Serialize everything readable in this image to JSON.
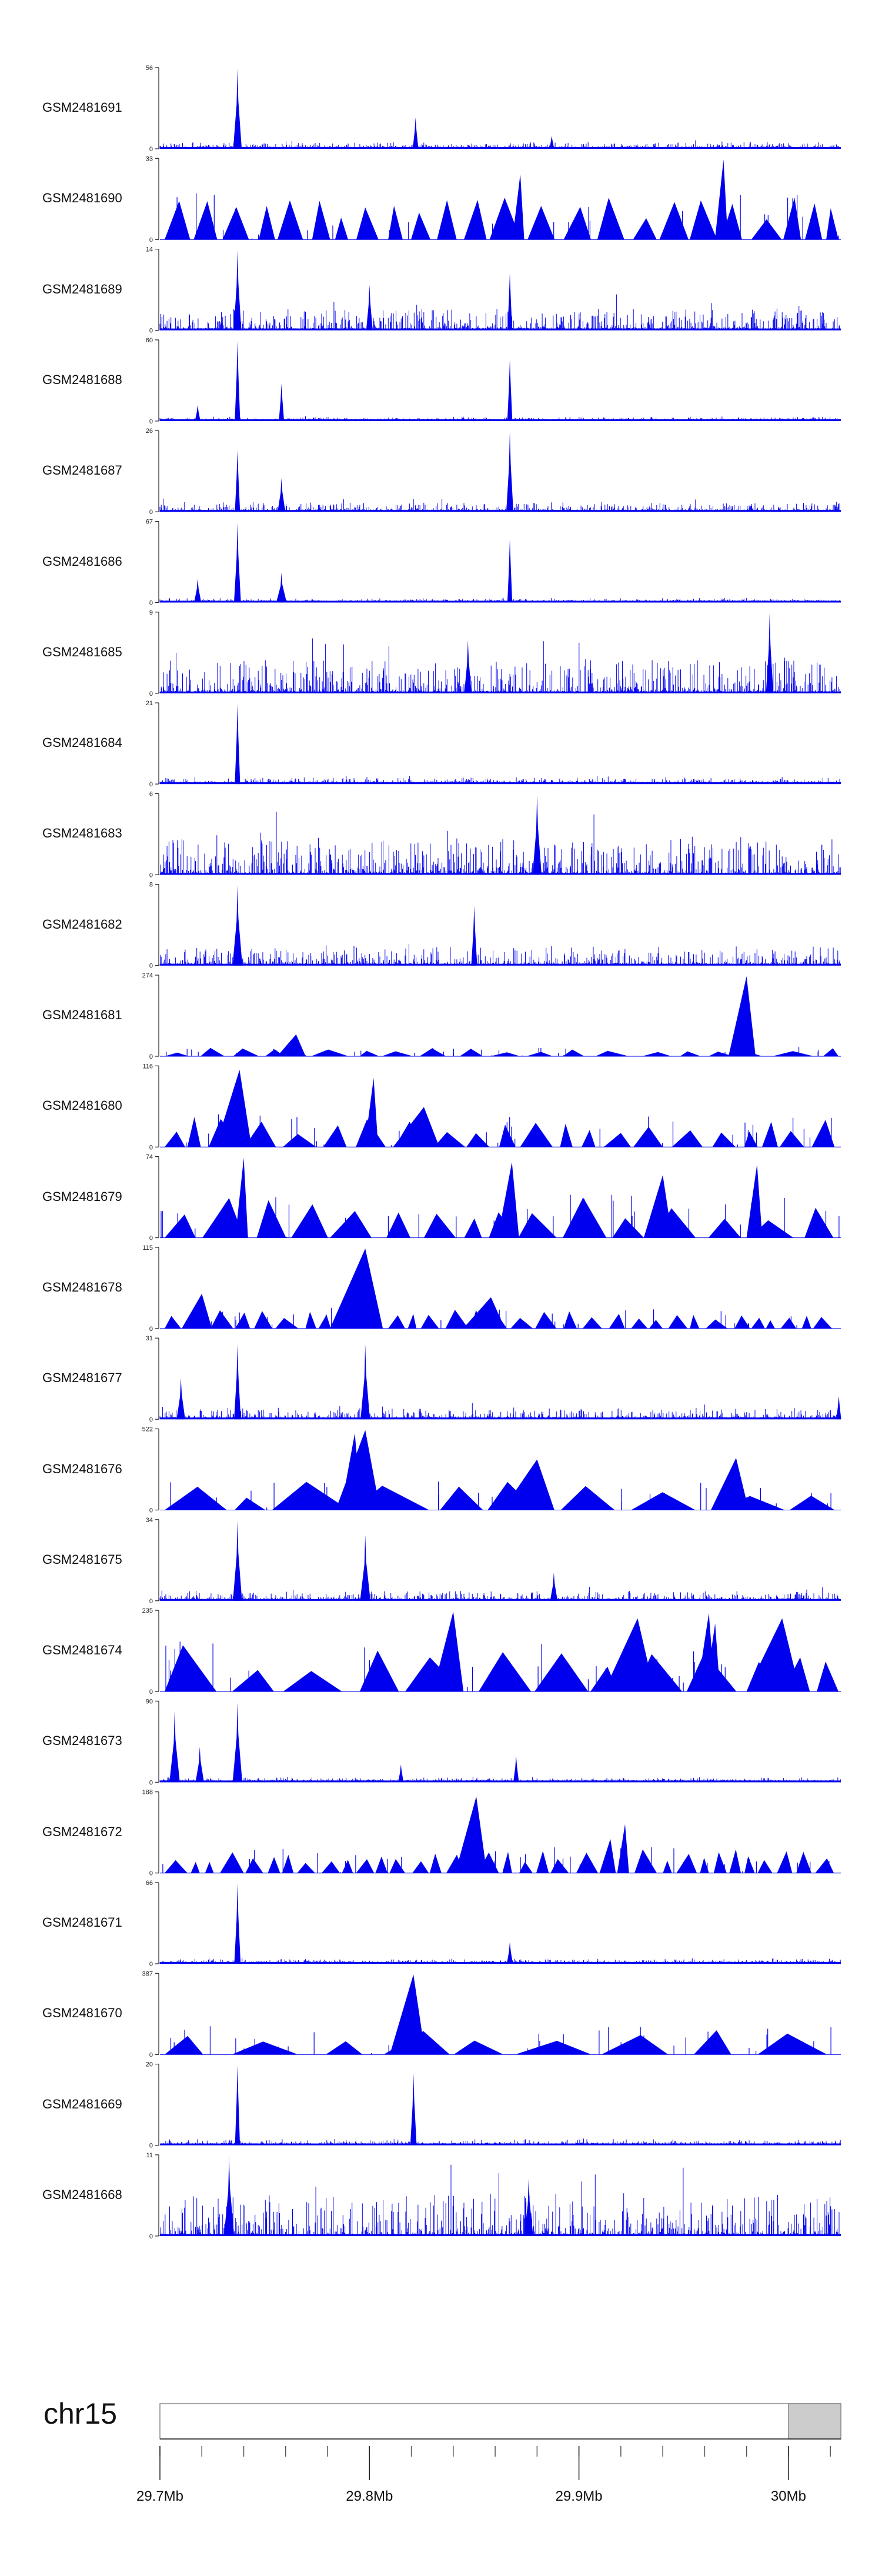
{
  "chart_data": {
    "type": "area",
    "title": "",
    "chromosome": "chr15",
    "region": {
      "start": 29.7,
      "end": 30.025,
      "unit": "Mb"
    },
    "series_color": "#0000ee",
    "tracks": [
      {
        "name": "GSM2481691",
        "ymax_label": "56",
        "ymin_label": "0",
        "ymax": 56,
        "style": "dense",
        "noise": 0.06,
        "peaks": [
          [
            29.737,
            56
          ],
          [
            29.822,
            22
          ],
          [
            29.887,
            9
          ]
        ]
      },
      {
        "name": "GSM2481690",
        "ymax_label": "33",
        "ymin_label": "0",
        "ymax": 33,
        "style": "sparse",
        "noise": 0.45,
        "gaps": 30,
        "peaks": [
          [
            29.969,
            33
          ],
          [
            29.872,
            27
          ]
        ]
      },
      {
        "name": "GSM2481689",
        "ymax_label": "14",
        "ymin_label": "0",
        "ymax": 14,
        "style": "dense",
        "noise": 0.25,
        "peaks": [
          [
            29.737,
            14
          ],
          [
            29.867,
            10
          ],
          [
            29.8,
            8
          ]
        ]
      },
      {
        "name": "GSM2481688",
        "ymax_label": "60",
        "ymin_label": "0",
        "ymax": 60,
        "style": "dense",
        "noise": 0.03,
        "peaks": [
          [
            29.737,
            60
          ],
          [
            29.758,
            28
          ],
          [
            29.867,
            46
          ],
          [
            29.718,
            12
          ]
        ]
      },
      {
        "name": "GSM2481687",
        "ymax_label": "26",
        "ymin_label": "0",
        "ymax": 26,
        "style": "dense",
        "noise": 0.1,
        "peaks": [
          [
            29.737,
            20
          ],
          [
            29.758,
            11
          ],
          [
            29.867,
            26
          ]
        ]
      },
      {
        "name": "GSM2481686",
        "ymax_label": "67",
        "ymin_label": "0",
        "ymax": 67,
        "style": "dense",
        "noise": 0.03,
        "peaks": [
          [
            29.737,
            67
          ],
          [
            29.758,
            25
          ],
          [
            29.867,
            53
          ],
          [
            29.718,
            20
          ]
        ]
      },
      {
        "name": "GSM2481685",
        "ymax_label": "9",
        "ymin_label": "0",
        "ymax": 9,
        "style": "dense",
        "noise": 0.4,
        "peaks": [
          [
            29.991,
            9
          ],
          [
            29.847,
            6
          ]
        ]
      },
      {
        "name": "GSM2481684",
        "ymax_label": "21",
        "ymin_label": "0",
        "ymax": 21,
        "style": "dense",
        "noise": 0.06,
        "peaks": [
          [
            29.737,
            21
          ]
        ]
      },
      {
        "name": "GSM2481683",
        "ymax_label": "6",
        "ymin_label": "0",
        "ymax": 6,
        "style": "dense",
        "noise": 0.45,
        "peaks": [
          [
            29.88,
            6
          ]
        ]
      },
      {
        "name": "GSM2481682",
        "ymax_label": "8",
        "ymin_label": "0",
        "ymax": 8,
        "style": "dense",
        "noise": 0.22,
        "peaks": [
          [
            29.737,
            8
          ],
          [
            29.85,
            6
          ]
        ]
      },
      {
        "name": "GSM2481681",
        "ymax_label": "274",
        "ymin_label": "0",
        "ymax": 274,
        "style": "sparse",
        "noise": 0.09,
        "gaps": 22,
        "peaks": [
          [
            29.98,
            274
          ],
          [
            29.765,
            75
          ]
        ]
      },
      {
        "name": "GSM2481680",
        "ymax_label": "116",
        "ymin_label": "0",
        "ymax": 116,
        "style": "sparse",
        "noise": 0.32,
        "gaps": 28,
        "peaks": [
          [
            29.738,
            112
          ],
          [
            29.802,
            100
          ],
          [
            29.826,
            58
          ]
        ]
      },
      {
        "name": "GSM2481679",
        "ymax_label": "74",
        "ymin_label": "0",
        "ymax": 74,
        "style": "sparse",
        "noise": 0.42,
        "gaps": 20,
        "peaks": [
          [
            29.74,
            74
          ],
          [
            29.868,
            70
          ],
          [
            29.985,
            68
          ],
          [
            29.94,
            58
          ]
        ]
      },
      {
        "name": "GSM2481678",
        "ymax_label": "115",
        "ymin_label": "0",
        "ymax": 115,
        "style": "sparse",
        "noise": 0.2,
        "gaps": 40,
        "peaks": [
          [
            29.798,
            115
          ],
          [
            29.72,
            50
          ],
          [
            29.858,
            45
          ]
        ]
      },
      {
        "name": "GSM2481677",
        "ymax_label": "31",
        "ymin_label": "0",
        "ymax": 31,
        "style": "dense",
        "noise": 0.12,
        "peaks": [
          [
            29.737,
            29
          ],
          [
            29.798,
            29
          ],
          [
            29.71,
            16
          ],
          [
            30.024,
            9
          ]
        ]
      },
      {
        "name": "GSM2481676",
        "ymax_label": "522",
        "ymin_label": "0",
        "ymax": 522,
        "style": "sparse",
        "noise": 0.3,
        "gaps": 12,
        "peaks": [
          [
            29.798,
            522
          ],
          [
            29.793,
            500
          ],
          [
            29.975,
            340
          ],
          [
            29.88,
            330
          ]
        ]
      },
      {
        "name": "GSM2481675",
        "ymax_label": "34",
        "ymin_label": "0",
        "ymax": 34,
        "style": "dense",
        "noise": 0.1,
        "peaks": [
          [
            29.737,
            34
          ],
          [
            29.798,
            28
          ],
          [
            29.888,
            12
          ]
        ]
      },
      {
        "name": "GSM2481674",
        "ymax_label": "235",
        "ymin_label": "0",
        "ymax": 235,
        "style": "sparse",
        "noise": 0.5,
        "gaps": 16,
        "peaks": [
          [
            29.84,
            235
          ],
          [
            29.962,
            230
          ],
          [
            29.928,
            215
          ],
          [
            29.997,
            215
          ],
          [
            29.965,
            200
          ]
        ]
      },
      {
        "name": "GSM2481673",
        "ymax_label": "90",
        "ymin_label": "0",
        "ymax": 90,
        "style": "dense",
        "noise": 0.04,
        "peaks": [
          [
            29.707,
            80
          ],
          [
            29.737,
            90
          ],
          [
            29.719,
            40
          ],
          [
            29.87,
            30
          ],
          [
            29.815,
            20
          ]
        ]
      },
      {
        "name": "GSM2481672",
        "ymax_label": "188",
        "ymin_label": "0",
        "ymax": 188,
        "style": "sparse",
        "noise": 0.25,
        "gaps": 40,
        "peaks": [
          [
            29.851,
            180
          ],
          [
            29.922,
            115
          ],
          [
            29.915,
            80
          ]
        ]
      },
      {
        "name": "GSM2481671",
        "ymax_label": "66",
        "ymin_label": "0",
        "ymax": 66,
        "style": "dense",
        "noise": 0.04,
        "peaks": [
          [
            29.737,
            66
          ],
          [
            29.867,
            18
          ]
        ]
      },
      {
        "name": "GSM2481670",
        "ymax_label": "387",
        "ymin_label": "0",
        "ymax": 387,
        "style": "sparse",
        "noise": 0.28,
        "gaps": 10,
        "peaks": [
          [
            29.821,
            387
          ],
          [
            29.823,
            140
          ]
        ]
      },
      {
        "name": "GSM2481669",
        "ymax_label": "20",
        "ymin_label": "0",
        "ymax": 20,
        "style": "dense",
        "noise": 0.05,
        "peaks": [
          [
            29.737,
            20
          ],
          [
            29.821,
            18
          ]
        ]
      },
      {
        "name": "GSM2481668",
        "ymax_label": "11",
        "ymin_label": "0",
        "ymax": 11,
        "style": "dense",
        "noise": 0.5,
        "peaks": [
          [
            29.733,
            11
          ],
          [
            29.876,
            8
          ]
        ]
      }
    ],
    "xaxis": {
      "ticks": [
        {
          "value": 29.7,
          "label": "29.7Mb"
        },
        {
          "value": 29.8,
          "label": "29.8Mb"
        },
        {
          "value": 29.9,
          "label": "29.9Mb"
        },
        {
          "value": 30.0,
          "label": "30Mb"
        }
      ],
      "minor_step": 0.02,
      "highlight": {
        "start": 30.0,
        "end": 30.025,
        "color": "#cccccc"
      }
    }
  }
}
